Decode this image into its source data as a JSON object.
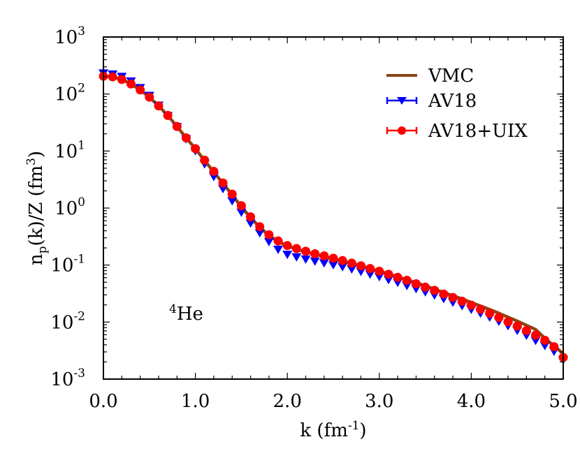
{
  "chart_data": {
    "type": "line",
    "title": "",
    "xlabel": "k (fm^-1)",
    "xlabel_parts": {
      "base": "k (fm",
      "sup": "-1",
      "tail": ")"
    },
    "ylabel": "n_p(k)/Z (fm^3)",
    "ylabel_parts": {
      "n": "n",
      "sub": "p",
      "mid": "(k)/Z (fm",
      "sup": "3",
      "tail": ")"
    },
    "xlim": [
      0.0,
      5.0
    ],
    "ylim": [
      0.001,
      1000
    ],
    "yscale": "log",
    "grid": false,
    "legend_position": "upper right",
    "annotation": {
      "sup": "4",
      "text": "He"
    },
    "x_ticks": [
      "0.0",
      "1.0",
      "2.0",
      "3.0",
      "4.0",
      "5.0"
    ],
    "y_ticks": [
      {
        "base": "10",
        "exp": "3"
      },
      {
        "base": "10",
        "exp": "2"
      },
      {
        "base": "10",
        "exp": "1"
      },
      {
        "base": "10",
        "exp": "0"
      },
      {
        "base": "10",
        "exp": "-1"
      },
      {
        "base": "10",
        "exp": "-2"
      },
      {
        "base": "10",
        "exp": "-3"
      }
    ],
    "x": [
      0.0,
      0.1,
      0.2,
      0.3,
      0.4,
      0.5,
      0.6,
      0.7,
      0.8,
      0.9,
      1.0,
      1.1,
      1.2,
      1.3,
      1.4,
      1.5,
      1.6,
      1.7,
      1.8,
      1.9,
      2.0,
      2.1,
      2.2,
      2.3,
      2.4,
      2.5,
      2.6,
      2.7,
      2.8,
      2.9,
      3.0,
      3.1,
      3.2,
      3.3,
      3.4,
      3.5,
      3.6,
      3.7,
      3.8,
      3.9,
      4.0,
      4.1,
      4.2,
      4.3,
      4.4,
      4.5,
      4.6,
      4.7,
      4.8,
      4.9,
      5.0
    ],
    "series": [
      {
        "name": "VMC",
        "style": "line",
        "color": "#8B4513",
        "values": [
          205,
          200,
          180,
          150,
          118,
          88,
          62,
          42,
          27,
          17,
          11,
          6.8,
          4.3,
          2.7,
          1.7,
          1.05,
          0.68,
          0.46,
          0.33,
          0.26,
          0.215,
          0.19,
          0.17,
          0.155,
          0.142,
          0.13,
          0.118,
          0.107,
          0.097,
          0.087,
          0.078,
          0.07,
          0.062,
          0.055,
          0.049,
          0.043,
          0.038,
          0.033,
          0.029,
          0.0255,
          0.022,
          0.0192,
          0.0166,
          0.0143,
          0.0122,
          0.0104,
          0.0088,
          0.0074,
          0.0052,
          0.0038,
          0.0028
        ]
      },
      {
        "name": "AV18",
        "style": "marker-triangle-down",
        "color": "#0000FF",
        "values": [
          235,
          225,
          205,
          170,
          130,
          95,
          64,
          42,
          27,
          16.5,
          10.2,
          6.0,
          3.6,
          2.2,
          1.35,
          0.85,
          0.55,
          0.37,
          0.26,
          0.19,
          0.155,
          0.14,
          0.128,
          0.118,
          0.11,
          0.102,
          0.094,
          0.086,
          0.078,
          0.07,
          0.063,
          0.056,
          0.05,
          0.044,
          0.039,
          0.034,
          0.03,
          0.026,
          0.0225,
          0.0195,
          0.0168,
          0.0144,
          0.0123,
          0.0104,
          0.0087,
          0.0072,
          0.0059,
          0.0048,
          0.0039,
          0.0031,
          0.0022
        ]
      },
      {
        "name": "AV18+UIX",
        "style": "marker-circle",
        "color": "#FF0000",
        "values": [
          205,
          200,
          180,
          150,
          118,
          88,
          62,
          42,
          27,
          17,
          11,
          6.9,
          4.4,
          2.75,
          1.75,
          1.1,
          0.7,
          0.47,
          0.34,
          0.265,
          0.22,
          0.195,
          0.175,
          0.158,
          0.145,
          0.132,
          0.12,
          0.108,
          0.097,
          0.087,
          0.078,
          0.069,
          0.061,
          0.054,
          0.047,
          0.041,
          0.036,
          0.031,
          0.027,
          0.0232,
          0.0198,
          0.0168,
          0.0142,
          0.012,
          0.0101,
          0.0085,
          0.0071,
          0.0059,
          0.0048,
          0.0037,
          0.0024
        ]
      }
    ]
  }
}
